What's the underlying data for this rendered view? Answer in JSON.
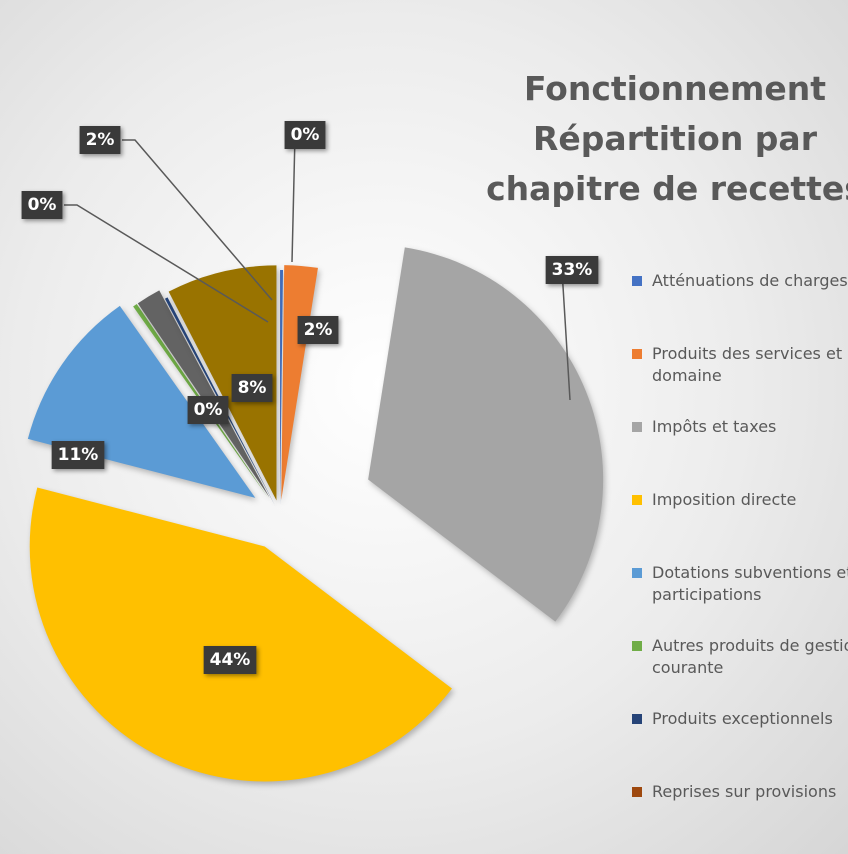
{
  "chart_data": {
    "type": "pie",
    "title": [
      "Fonctionnement",
      "Répartition par",
      "chapitre de recettes"
    ],
    "categories": [
      "Atténuations de charges",
      "Produits des services et du domaine",
      "Impôts et taxes",
      "Imposition directe",
      "Dotations subventions et participations",
      "Autres produits de gestion courante",
      null,
      "Produits exceptionnels",
      null,
      "Reprises sur provisions"
    ],
    "values": [
      0.2,
      2.3,
      32.9,
      43.8,
      11.2,
      0.3,
      1.7,
      0.2,
      7.6,
      0
    ],
    "value_labels": [
      "0%",
      "2%",
      "33%",
      "44%",
      "11%",
      "0%",
      "2%",
      "0%",
      "8%",
      null
    ],
    "colors": [
      "#4472c4",
      "#ed7d31",
      "#a5a5a5",
      "#ffc000",
      "#5b9bd5",
      "#70ad47",
      "#636363",
      "#264478",
      "#997300",
      "#9e480e"
    ],
    "legend": "right"
  }
}
